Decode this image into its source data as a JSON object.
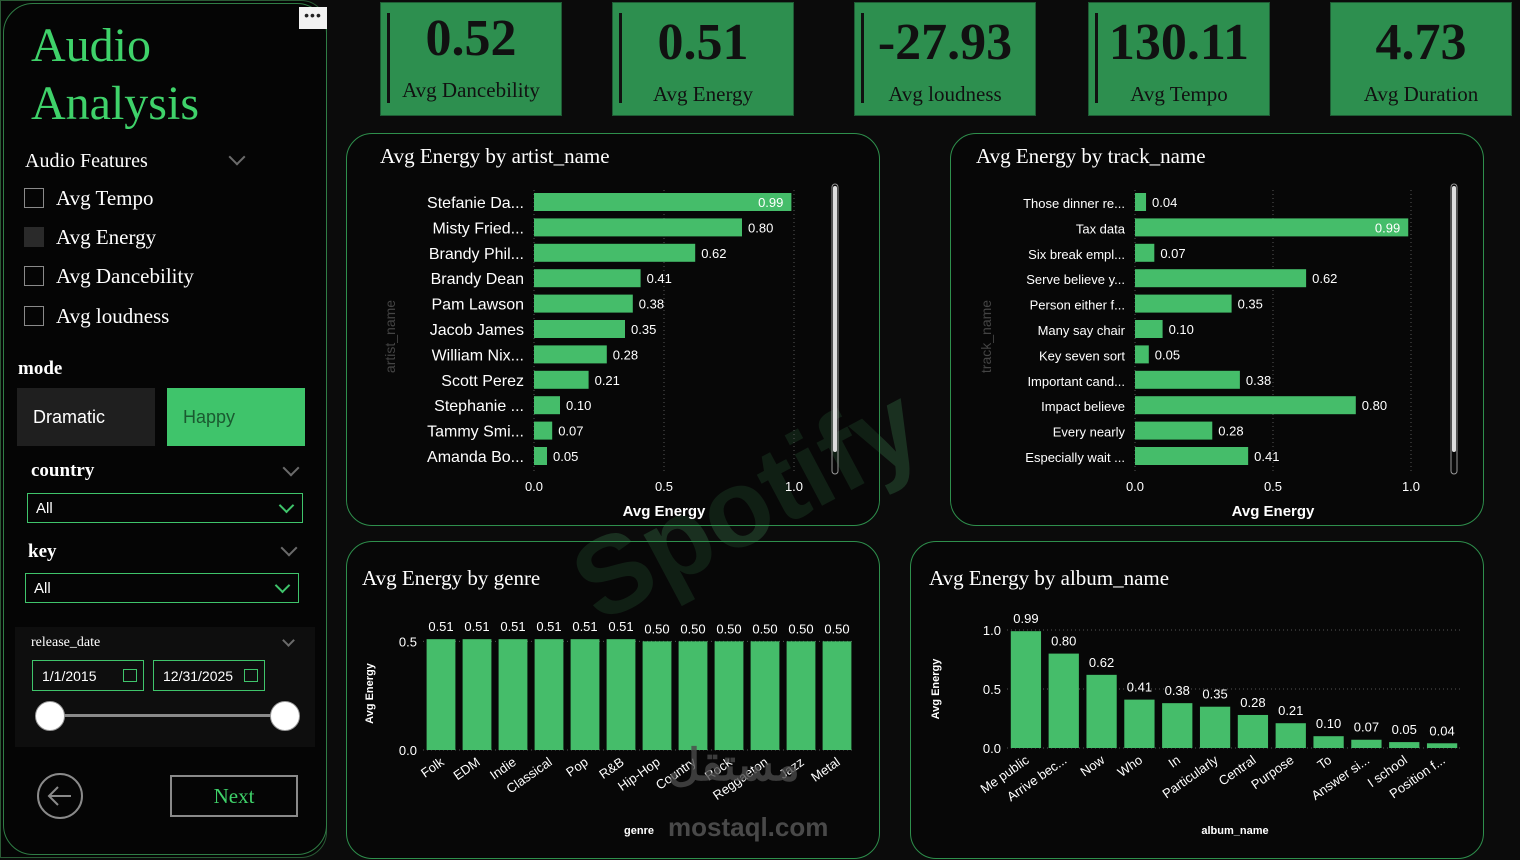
{
  "sidebar": {
    "title_line1": "Audio",
    "title_line2": "Analysis",
    "more": "•••",
    "audio_features": {
      "header": "Audio Features",
      "options": [
        {
          "label": "Avg Tempo",
          "checked": false
        },
        {
          "label": "Avg Energy",
          "checked": true
        },
        {
          "label": "Avg Dancebility",
          "checked": false
        },
        {
          "label": "Avg loudness",
          "checked": false
        }
      ]
    },
    "mode": {
      "header": "mode",
      "options": [
        "Dramatic",
        "Happy"
      ],
      "selected": "Happy"
    },
    "country": {
      "header": "country",
      "value": "All"
    },
    "key": {
      "header": "key",
      "value": "All"
    },
    "release_date": {
      "header": "release_date",
      "start": "1/1/2015",
      "end": "12/31/2025"
    },
    "next_label": "Next"
  },
  "kpis": [
    {
      "value": "0.52",
      "label": "Avg Dancebility"
    },
    {
      "value": "0.51",
      "label": "Avg Energy"
    },
    {
      "value": "-27.93",
      "label": "Avg loudness"
    },
    {
      "value": "130.11",
      "label": "Avg Tempo"
    },
    {
      "value": "4.73",
      "label": "Avg Duration"
    }
  ],
  "background_text": "Spotify",
  "watermark": {
    "arabic": "مستقل",
    "site": "mostaql.com"
  },
  "colors": {
    "accent": "#3fd26a",
    "bar": "#45bd6a",
    "kpi": "#2d8f4f"
  },
  "chart_data": [
    {
      "type": "bar",
      "orientation": "horizontal",
      "title": "Avg Energy by artist_name",
      "xlabel": "Avg Energy",
      "ylabel": "artist_name",
      "xlim": [
        0,
        1.0
      ],
      "xticks": [
        "0.0",
        "0.5",
        "1.0"
      ],
      "categories": [
        "Stefanie Da...",
        "Misty Fried...",
        "Brandy Phil...",
        "Brandy Dean",
        "Pam Lawson",
        "Jacob James",
        "William Nix...",
        "Scott Perez",
        "Stephanie ...",
        "Tammy Smi...",
        "Amanda Bo..."
      ],
      "values": [
        0.99,
        0.8,
        0.62,
        0.41,
        0.38,
        0.35,
        0.28,
        0.21,
        0.1,
        0.07,
        0.05
      ],
      "labels": [
        "0.99",
        "0.80",
        "0.62",
        "0.41",
        "0.38",
        "0.35",
        "0.28",
        "0.21",
        "0.10",
        "0.07",
        "0.05"
      ]
    },
    {
      "type": "bar",
      "orientation": "horizontal",
      "title": "Avg Energy by track_name",
      "xlabel": "Avg Energy",
      "ylabel": "track_name",
      "xlim": [
        0,
        1.0
      ],
      "xticks": [
        "0.0",
        "0.5",
        "1.0"
      ],
      "categories": [
        "Those dinner re...",
        "Tax data",
        "Six break empl...",
        "Serve believe y...",
        "Person either f...",
        "Many say chair",
        "Key seven sort",
        "Important cand...",
        "Impact believe",
        "Every nearly",
        "Especially wait ..."
      ],
      "values": [
        0.04,
        0.99,
        0.07,
        0.62,
        0.35,
        0.1,
        0.05,
        0.38,
        0.8,
        0.28,
        0.41
      ],
      "labels": [
        "0.04",
        "0.99",
        "0.07",
        "0.62",
        "0.35",
        "0.10",
        "0.05",
        "0.38",
        "0.80",
        "0.28",
        "0.41"
      ]
    },
    {
      "type": "bar",
      "orientation": "vertical",
      "title": "Avg Energy by genre",
      "xlabel": "genre",
      "ylabel": "Avg Energy",
      "ylim": [
        0,
        0.52
      ],
      "yticks": [
        "0.0",
        "0.5"
      ],
      "categories": [
        "Folk",
        "EDM",
        "Indie",
        "Classical",
        "Pop",
        "R&B",
        "Hip-Hop",
        "Country",
        "Rock",
        "Reggaeton",
        "Jazz",
        "Metal"
      ],
      "values": [
        0.51,
        0.51,
        0.51,
        0.51,
        0.51,
        0.51,
        0.5,
        0.5,
        0.5,
        0.5,
        0.5,
        0.5
      ],
      "labels": [
        "0.51",
        "0.51",
        "0.51",
        "0.51",
        "0.51",
        "0.51",
        "0.50",
        "0.50",
        "0.50",
        "0.50",
        "0.50",
        "0.50"
      ]
    },
    {
      "type": "bar",
      "orientation": "vertical",
      "title": "Avg Energy by album_name",
      "xlabel": "album_name",
      "ylabel": "Avg Energy",
      "ylim": [
        0,
        1.0
      ],
      "yticks": [
        "0.0",
        "0.5",
        "1.0"
      ],
      "categories": [
        "Me public",
        "Arrive bec...",
        "Now",
        "Who",
        "In",
        "Particularly",
        "Central",
        "Purpose",
        "To",
        "Answer si...",
        "I school",
        "Position f..."
      ],
      "values": [
        0.99,
        0.8,
        0.62,
        0.41,
        0.38,
        0.35,
        0.28,
        0.21,
        0.1,
        0.07,
        0.05,
        0.04
      ],
      "labels": [
        "0.99",
        "0.80",
        "0.62",
        "0.41",
        "0.38",
        "0.35",
        "0.28",
        "0.21",
        "0.10",
        "0.07",
        "0.05",
        "0.04"
      ]
    }
  ]
}
